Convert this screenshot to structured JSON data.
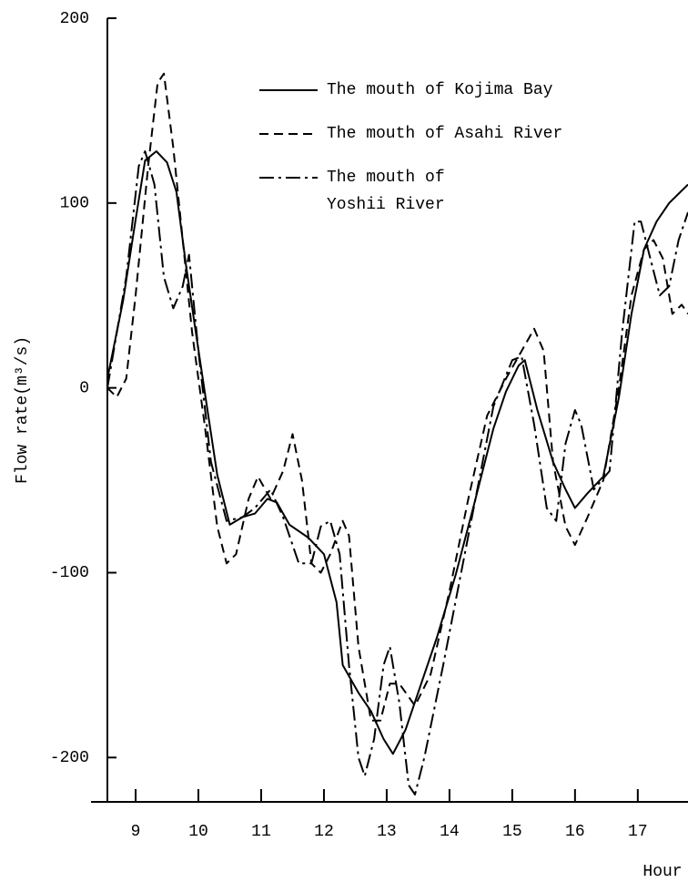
{
  "chart_data": {
    "type": "line",
    "ylabel": "Flow rate(m³/s)",
    "xlabel": "Hour",
    "xlim": [
      8.55,
      17.8
    ],
    "ylim": [
      -224,
      200
    ],
    "xticks": [
      9,
      10,
      11,
      12,
      13,
      14,
      15,
      16,
      17
    ],
    "yticks": [
      -200,
      -100,
      0,
      100,
      200
    ],
    "series": [
      {
        "name": "The mouth of Kojima Bay",
        "color": "#000000",
        "linestyle": "solid",
        "x": [
          8.55,
          8.8,
          9.0,
          9.15,
          9.33,
          9.5,
          9.65,
          9.8,
          9.95,
          10.1,
          10.3,
          10.5,
          10.7,
          10.9,
          11.1,
          11.25,
          11.45,
          11.75,
          12.0,
          12.2,
          12.3,
          12.55,
          12.75,
          12.95,
          13.1,
          13.3,
          13.5,
          13.8,
          14.1,
          14.4,
          14.7,
          14.9,
          15.1,
          15.2,
          15.4,
          15.65,
          15.85,
          16.0,
          16.2,
          16.45,
          16.7,
          16.9,
          17.1,
          17.3,
          17.5,
          17.8
        ],
        "values": [
          5,
          47,
          91,
          123,
          128,
          122,
          106,
          67,
          32,
          -2,
          -47,
          -74,
          -70,
          -68,
          -60,
          -62,
          -74,
          -81,
          -90,
          -116,
          -150,
          -165,
          -175,
          -190,
          -198,
          -185,
          -165,
          -135,
          -101,
          -62,
          -22,
          -2,
          12,
          15,
          -12,
          -40,
          -55,
          -65,
          -57,
          -48,
          -5,
          40,
          75,
          90,
          100,
          110
        ]
      },
      {
        "name": "The mouth of Asahi River",
        "color": "#000000",
        "linestyle": "dashed",
        "x": [
          8.55,
          8.7,
          8.85,
          9.0,
          9.2,
          9.35,
          9.45,
          9.6,
          9.75,
          9.9,
          10.1,
          10.3,
          10.45,
          10.6,
          10.8,
          10.95,
          11.15,
          11.35,
          11.5,
          11.65,
          11.8,
          11.95,
          12.1,
          12.3,
          12.4,
          12.55,
          12.75,
          12.9,
          13.05,
          13.2,
          13.45,
          13.7,
          14.0,
          14.3,
          14.6,
          14.9,
          15.15,
          15.35,
          15.5,
          15.65,
          15.85,
          16.0,
          16.2,
          16.45,
          16.7,
          16.9,
          17.1,
          17.25,
          17.4,
          17.55,
          17.7,
          17.8
        ],
        "values": [
          0,
          -5,
          5,
          50,
          120,
          165,
          170,
          130,
          80,
          30,
          -20,
          -75,
          -95,
          -90,
          -60,
          -48,
          -60,
          -45,
          -25,
          -50,
          -95,
          -100,
          -90,
          -72,
          -80,
          -140,
          -180,
          -180,
          -160,
          -160,
          -172,
          -155,
          -110,
          -60,
          -15,
          5,
          20,
          32,
          20,
          -40,
          -75,
          -85,
          -70,
          -50,
          0,
          50,
          75,
          80,
          70,
          40,
          45,
          40
        ]
      },
      {
        "name": "The mouth of\nYoshii River",
        "color": "#000000",
        "linestyle": "dashdot",
        "x": [
          8.55,
          8.85,
          9.05,
          9.15,
          9.3,
          9.45,
          9.6,
          9.75,
          9.85,
          10.0,
          10.2,
          10.45,
          10.7,
          10.9,
          11.15,
          11.35,
          11.6,
          11.8,
          11.95,
          12.1,
          12.25,
          12.4,
          12.55,
          12.65,
          12.8,
          12.95,
          13.05,
          13.2,
          13.35,
          13.45,
          13.6,
          13.9,
          14.3,
          14.7,
          15.0,
          15.15,
          15.35,
          15.55,
          15.7,
          15.85,
          16.0,
          16.1,
          16.3,
          16.55,
          16.75,
          16.95,
          17.05,
          17.2,
          17.35,
          17.5,
          17.65,
          17.8
        ],
        "values": [
          0,
          60,
          120,
          128,
          110,
          60,
          43,
          55,
          72,
          20,
          -40,
          -72,
          -70,
          -65,
          -55,
          -70,
          -95,
          -95,
          -75,
          -72,
          -90,
          -150,
          -200,
          -210,
          -190,
          -150,
          -140,
          -170,
          -215,
          -220,
          -200,
          -150,
          -80,
          -10,
          15,
          17,
          -20,
          -65,
          -72,
          -30,
          -12,
          -20,
          -55,
          -45,
          30,
          90,
          90,
          70,
          50,
          55,
          80,
          95
        ]
      }
    ]
  }
}
